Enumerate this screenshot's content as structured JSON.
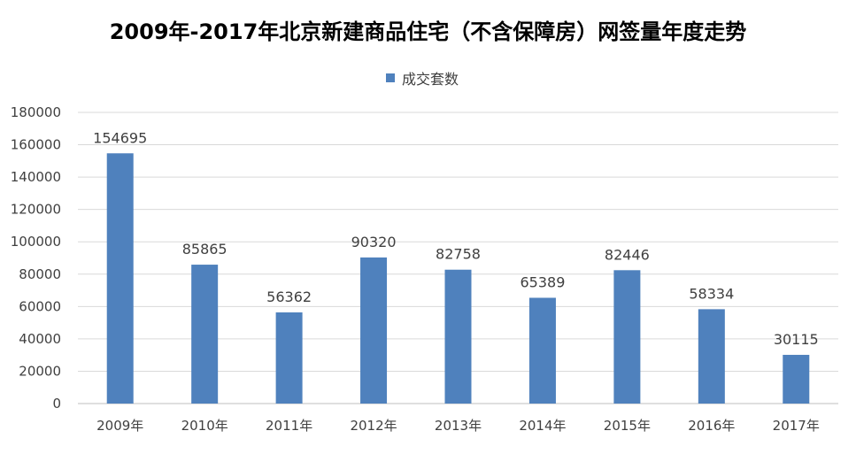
{
  "chart_data": {
    "type": "bar",
    "title": "2009年-2017年北京新建商品住宅（不含保障房）网签量年度走势",
    "xlabel": "",
    "ylabel": "",
    "categories": [
      "2009年",
      "2010年",
      "2011年",
      "2012年",
      "2013年",
      "2014年",
      "2015年",
      "2016年",
      "2017年"
    ],
    "series": [
      {
        "name": "成交套数",
        "values": [
          154695,
          85865,
          56362,
          90320,
          82758,
          65389,
          82446,
          58334,
          30115
        ],
        "color": "#4f81bd"
      }
    ],
    "ylim": [
      0,
      180000
    ],
    "yticks": [
      0,
      20000,
      40000,
      60000,
      80000,
      100000,
      120000,
      140000,
      160000,
      180000
    ],
    "grid": true,
    "legend_position": "top-center",
    "data_labels": true
  }
}
